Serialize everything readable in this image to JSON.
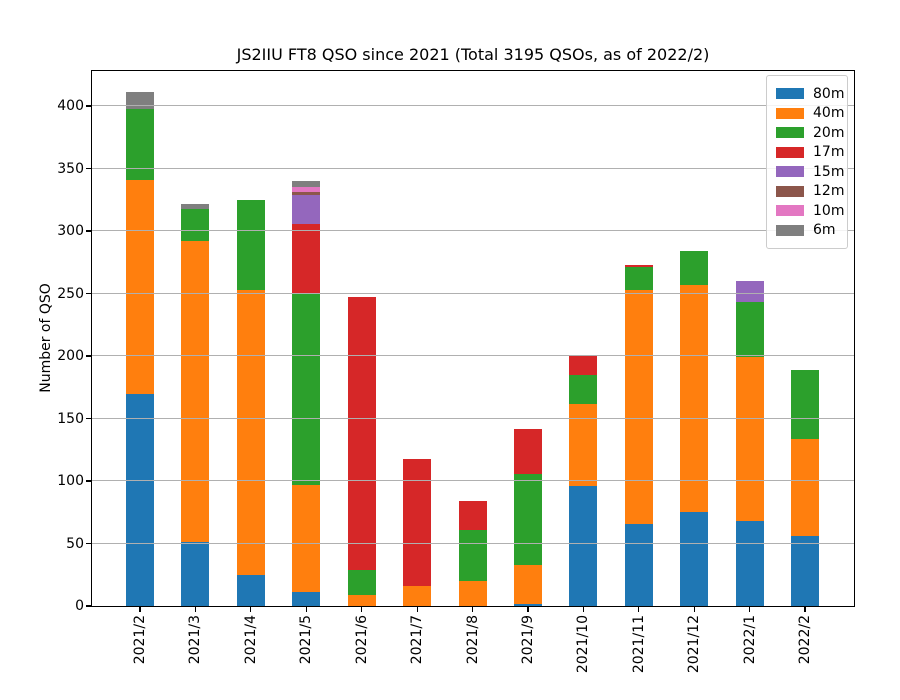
{
  "chart_data": {
    "type": "bar",
    "stacked": true,
    "title": "JS2IIU FT8 QSO since 2021 (Total 3195 QSOs, as of 2022/2)",
    "xlabel": "",
    "ylabel": "Number of QSO",
    "categories": [
      "2021/2",
      "2021/3",
      "2021/4",
      "2021/5",
      "2021/6",
      "2021/7",
      "2021/8",
      "2021/9",
      "2021/10",
      "2021/11",
      "2021/12",
      "2022/1",
      "2022/2"
    ],
    "series": [
      {
        "name": "80m",
        "color": "#1f77b4",
        "values": [
          170,
          51,
          25,
          11,
          0,
          0,
          0,
          2,
          96,
          66,
          75,
          68,
          56
        ]
      },
      {
        "name": "40m",
        "color": "#ff7f0e",
        "values": [
          171,
          241,
          228,
          86,
          9,
          16,
          20,
          31,
          66,
          187,
          182,
          131,
          78
        ]
      },
      {
        "name": "20m",
        "color": "#2ca02c",
        "values": [
          57,
          26,
          72,
          153,
          20,
          0,
          41,
          73,
          23,
          18,
          27,
          44,
          55
        ]
      },
      {
        "name": "17m",
        "color": "#d62728",
        "values": [
          0,
          0,
          0,
          56,
          218,
          102,
          23,
          36,
          15,
          2,
          0,
          0,
          0
        ]
      },
      {
        "name": "15m",
        "color": "#9467bd",
        "values": [
          0,
          0,
          0,
          23,
          0,
          0,
          0,
          0,
          0,
          0,
          0,
          17,
          0
        ]
      },
      {
        "name": "12m",
        "color": "#8c564b",
        "values": [
          0,
          0,
          0,
          2,
          0,
          0,
          0,
          0,
          0,
          0,
          0,
          0,
          0
        ]
      },
      {
        "name": "10m",
        "color": "#e377c2",
        "values": [
          0,
          0,
          0,
          4,
          0,
          0,
          0,
          0,
          0,
          0,
          0,
          0,
          0
        ]
      },
      {
        "name": "6m",
        "color": "#7f7f7f",
        "values": [
          13,
          4,
          0,
          5,
          0,
          0,
          0,
          0,
          0,
          0,
          0,
          0,
          0
        ]
      }
    ],
    "monthly_totals": [
      411,
      322,
      325,
      340,
      247,
      118,
      84,
      142,
      200,
      273,
      284,
      260,
      189
    ],
    "ylim": [
      0,
      428
    ],
    "yticks": [
      0,
      50,
      100,
      150,
      200,
      250,
      300,
      350,
      400
    ],
    "grid": "horizontal",
    "grid_color": "#b0b0b0",
    "legend_position": "upper right"
  }
}
